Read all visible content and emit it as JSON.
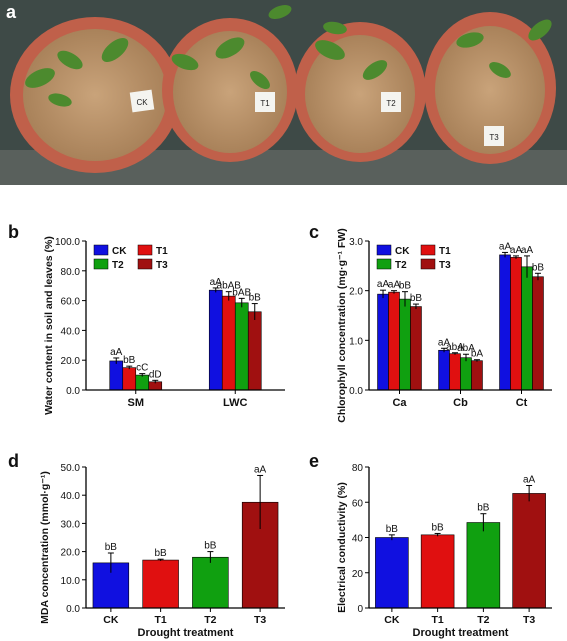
{
  "photo": {
    "panel_label": "a",
    "pot_tags": [
      "CK",
      "T1",
      "T2",
      "T3"
    ]
  },
  "colors": {
    "CK": "#1010e0",
    "T1": "#e01010",
    "T2": "#10a010",
    "T3": "#a01010"
  },
  "chart_data": [
    {
      "panel_label": "b",
      "type": "bar",
      "ylabel": "Water content in soil and leaves (%)",
      "xlabel": "",
      "categories": [
        "SM",
        "LWC"
      ],
      "ylim": [
        0,
        100
      ],
      "yticks": [
        "0.0",
        "20.0",
        "40.0",
        "60.0",
        "80.0",
        "100.0"
      ],
      "legend": [
        "CK",
        "T1",
        "T2",
        "T3"
      ],
      "legend_position": "top-left",
      "series": [
        {
          "name": "CK",
          "values": [
            19.5,
            67.0
          ],
          "errors": [
            2.0,
            1.5
          ]
        },
        {
          "name": "T1",
          "values": [
            15.0,
            63.0
          ],
          "errors": [
            1.0,
            3.0
          ]
        },
        {
          "name": "T2",
          "values": [
            10.0,
            58.5
          ],
          "errors": [
            1.0,
            3.0
          ]
        },
        {
          "name": "T3",
          "values": [
            5.5,
            52.5
          ],
          "errors": [
            1.0,
            5.5
          ]
        }
      ],
      "letters": [
        [
          "aA",
          "bB",
          "cC",
          "dD"
        ],
        [
          "aA",
          "abAB",
          "bAB",
          "bB"
        ]
      ]
    },
    {
      "panel_label": "c",
      "type": "bar",
      "ylabel": "Chlorophyll concentration (mg·g⁻¹ FW)",
      "xlabel": "",
      "categories": [
        "Ca",
        "Cb",
        "Ct"
      ],
      "ylim": [
        0,
        3.0
      ],
      "yticks": [
        "0.0",
        "1.0",
        "2.0",
        "3.0"
      ],
      "legend": [
        "CK",
        "T1",
        "T2",
        "T3"
      ],
      "legend_position": "top-left",
      "series": [
        {
          "name": "CK",
          "values": [
            1.93,
            0.8,
            2.72
          ],
          "errors": [
            0.08,
            0.04,
            0.05
          ]
        },
        {
          "name": "T1",
          "values": [
            1.97,
            0.73,
            2.67
          ],
          "errors": [
            0.03,
            0.02,
            0.03
          ]
        },
        {
          "name": "T2",
          "values": [
            1.83,
            0.65,
            2.48
          ],
          "errors": [
            0.15,
            0.07,
            0.22
          ]
        },
        {
          "name": "T3",
          "values": [
            1.68,
            0.59,
            2.28
          ],
          "errors": [
            0.05,
            0.02,
            0.07
          ]
        }
      ],
      "letters": [
        [
          "aA",
          "aA",
          "bB",
          "bB"
        ],
        [
          "aA",
          "abA",
          "abA",
          "bA"
        ],
        [
          "aA",
          "aA",
          "aA",
          "bB"
        ]
      ]
    },
    {
      "panel_label": "d",
      "type": "bar",
      "ylabel": "MDA concentration (mmol·g⁻¹)",
      "xlabel": "Drought treatment",
      "categories": [
        "CK",
        "T1",
        "T2",
        "T3"
      ],
      "ylim": [
        0,
        50
      ],
      "yticks": [
        "0.0",
        "10.0",
        "20.0",
        "30.0",
        "40.0",
        "50.0"
      ],
      "values": [
        16.0,
        17.0,
        18.0,
        37.5
      ],
      "errors": [
        3.5,
        0.3,
        2.0,
        9.5
      ],
      "letters": [
        "bB",
        "bB",
        "bB",
        "aA"
      ]
    },
    {
      "panel_label": "e",
      "type": "bar",
      "ylabel": "Electrical conductivity (%)",
      "xlabel": "Drought treatment",
      "categories": [
        "CK",
        "T1",
        "T2",
        "T3"
      ],
      "ylim": [
        0,
        80
      ],
      "yticks": [
        "0",
        "20",
        "40",
        "60",
        "80"
      ],
      "values": [
        40.0,
        41.5,
        48.5,
        65.0
      ],
      "errors": [
        1.5,
        0.8,
        5.0,
        4.5
      ],
      "letters": [
        "bB",
        "bB",
        "bB",
        "aA"
      ]
    }
  ]
}
